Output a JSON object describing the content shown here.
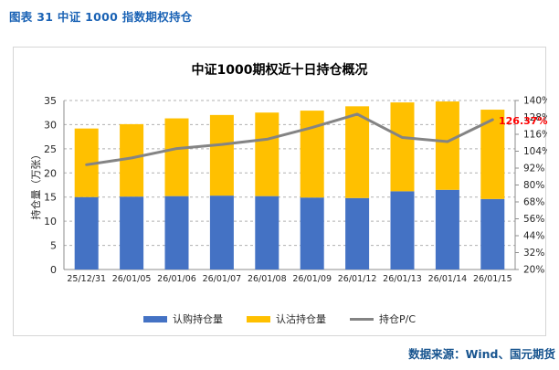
{
  "page": {
    "header_title": "图表 31  中证 1000 指数期权持仓",
    "source_text": "数据来源：Wind、国元期货"
  },
  "colors": {
    "header_blue": "#1B63B5",
    "source_blue": "#17548F",
    "call_blue": "#4472C4",
    "put_yellow": "#FFC000",
    "pc_line_gray": "#848484",
    "last_label_red": "#FF0000",
    "grid_gray": "#B0B0B0",
    "axis_gray": "#8C8C8C"
  },
  "chart_data": {
    "type": "combo-stacked-bar-line",
    "title": "中证1000期权近十日持仓概况",
    "grid": "horizontal-dashed",
    "legend_position": "bottom",
    "categories": [
      "25/12/31",
      "26/01/05",
      "26/01/06",
      "26/01/07",
      "26/01/08",
      "26/01/09",
      "26/01/12",
      "26/01/13",
      "26/01/14",
      "26/01/15"
    ],
    "series": [
      {
        "name": "认购持仓量",
        "type": "bar",
        "stacked": true,
        "axis": "left",
        "color": "#4472C4",
        "values": [
          15.0,
          15.1,
          15.2,
          15.3,
          15.2,
          14.9,
          14.8,
          16.2,
          16.5,
          14.6
        ]
      },
      {
        "name": "认沽持仓量",
        "type": "bar",
        "stacked": true,
        "axis": "left",
        "color": "#FFC000",
        "values": [
          14.2,
          15.0,
          16.1,
          16.7,
          17.3,
          18.0,
          19.0,
          18.4,
          18.3,
          18.5
        ]
      },
      {
        "name": "持仓P/C",
        "type": "line",
        "axis": "right",
        "color": "#848484",
        "unit": "%",
        "values": [
          94.4,
          99.2,
          105.9,
          108.8,
          112.5,
          120.8,
          130.3,
          113.7,
          110.8,
          126.37
        ]
      }
    ],
    "left_axis": {
      "title": "持仓量（万张）",
      "min": 0,
      "max": 35,
      "step": 5,
      "tick_labels": [
        "0",
        "5",
        "10",
        "15",
        "20",
        "25",
        "30",
        "35"
      ]
    },
    "right_axis": {
      "min": 20,
      "max": 140,
      "step": 12,
      "tick_labels": [
        "20%",
        "32%",
        "44%",
        "56%",
        "68%",
        "80%",
        "92%",
        "104%",
        "116%",
        "128%",
        "140%"
      ]
    },
    "last_point_label": "126.37%"
  }
}
